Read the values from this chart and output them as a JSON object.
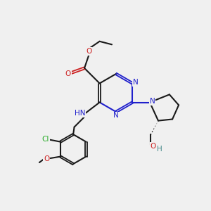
{
  "bg_color": "#f0f0f0",
  "bond_color": "#1a1a1a",
  "n_color": "#2020cc",
  "o_color": "#cc2020",
  "cl_color": "#22aa22",
  "lw": 1.5,
  "dlw": 1.3,
  "fs": 7.5,
  "dpi": 100,
  "xlim": [
    0,
    10
  ],
  "ylim": [
    0,
    10
  ]
}
